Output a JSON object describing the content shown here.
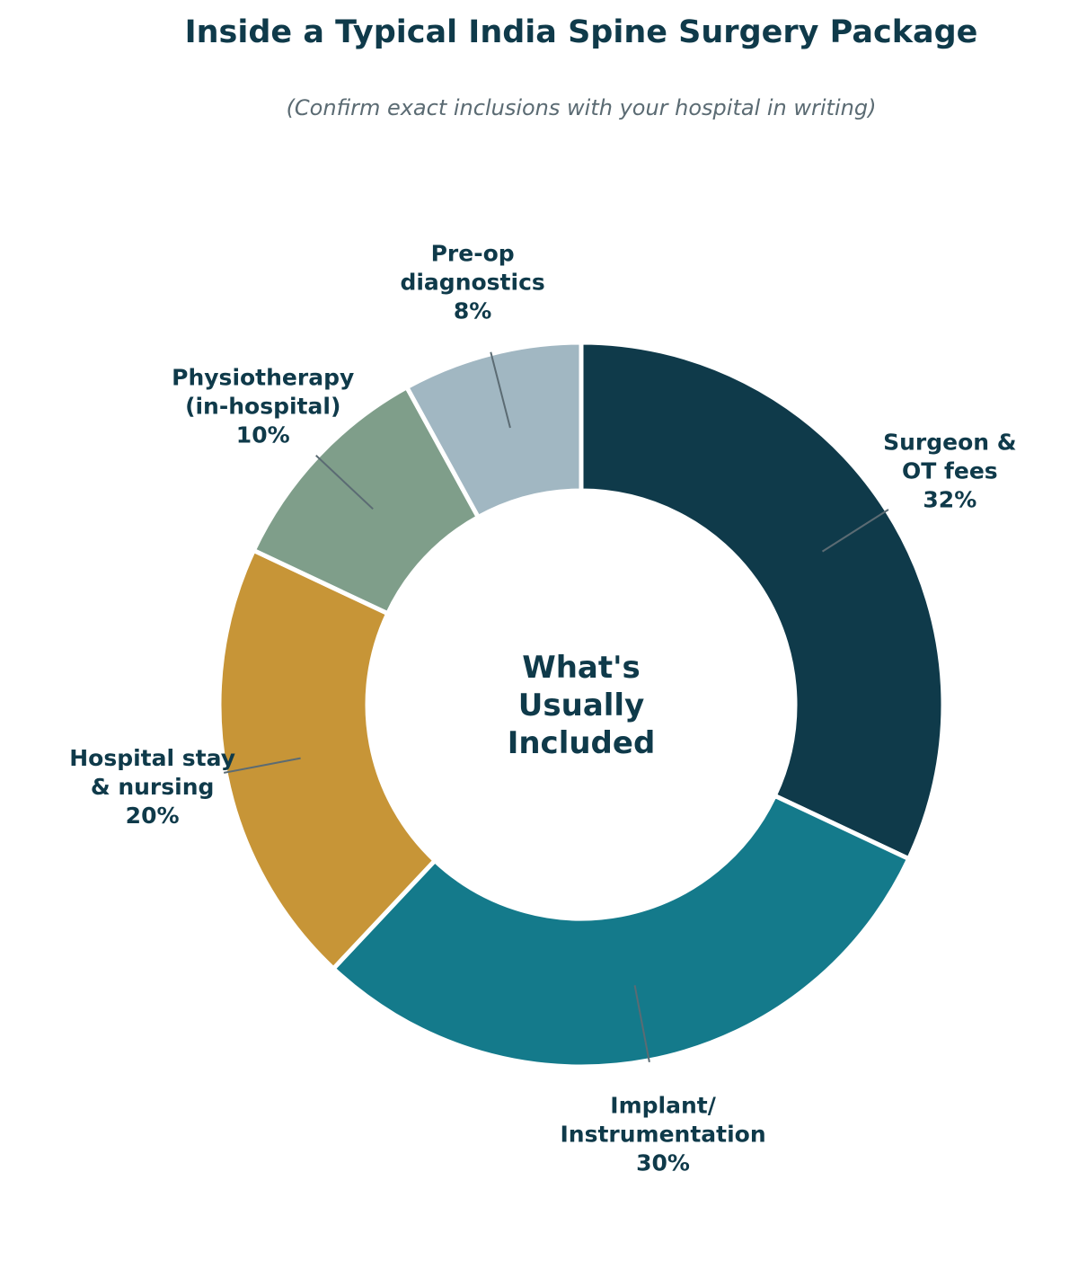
{
  "chart_data": {
    "type": "pie",
    "variant": "donut",
    "title": "Inside a Typical India Spine Surgery Package",
    "subtitle": "(Confirm exact inclusions with your hospital in writing)",
    "center_text": [
      "What's",
      "Usually",
      "Included"
    ],
    "unit": "%",
    "slices": [
      {
        "label": [
          "Surgeon &",
          "OT fees"
        ],
        "value": 32,
        "value_label": "32%",
        "color": "#0f3a4a"
      },
      {
        "label": [
          "Implant/",
          "Instrumentation"
        ],
        "value": 30,
        "value_label": "30%",
        "color": "#147a8b"
      },
      {
        "label": [
          "Hospital stay",
          "& nursing"
        ],
        "value": 20,
        "value_label": "20%",
        "color": "#c79537"
      },
      {
        "label": [
          "Physiotherapy",
          "(in-hospital)"
        ],
        "value": 10,
        "value_label": "10%",
        "color": "#7f9e8a"
      },
      {
        "label": [
          "Pre-op",
          "diagnostics"
        ],
        "value": 8,
        "value_label": "8%",
        "color": "#a1b7c2"
      }
    ],
    "start_angle": "12 o'clock",
    "direction": "clockwise",
    "legend": "none"
  },
  "colors": {
    "text": "#0f3a4a",
    "subtitle": "#5b6b73",
    "leader_line": "#5b6b73",
    "separator": "#ffffff",
    "background": "#ffffff"
  }
}
